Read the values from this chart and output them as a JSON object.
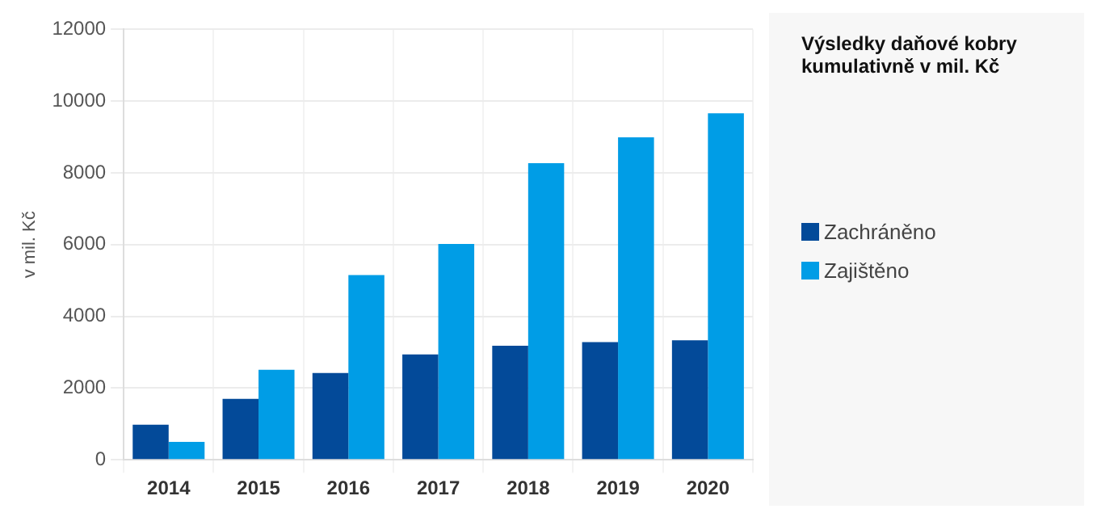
{
  "chart_data": {
    "type": "bar",
    "title": "Výsledky daňové kobry kumulativně v mil. Kč",
    "ylabel": "v mil. Kč",
    "categories": [
      "2014",
      "2015",
      "2016",
      "2017",
      "2018",
      "2019",
      "2020"
    ],
    "series": [
      {
        "name": "Zachráněno",
        "color": "#034a99",
        "values": [
          980,
          1700,
          2420,
          2940,
          3180,
          3280,
          3330
        ]
      },
      {
        "name": "Zajištěno",
        "color": "#009de6",
        "values": [
          500,
          2510,
          5150,
          6020,
          8270,
          8990,
          9660
        ]
      }
    ],
    "ylim": [
      0,
      12000
    ],
    "yticks": [
      0,
      2000,
      4000,
      6000,
      8000,
      10000,
      12000
    ],
    "grid": true,
    "legend": "right"
  }
}
